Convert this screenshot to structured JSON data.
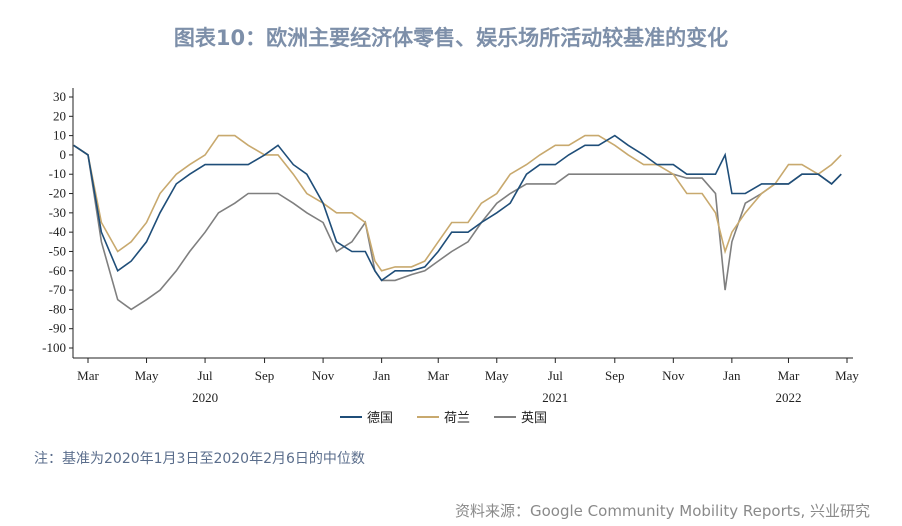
{
  "title": "图表10：欧洲主要经济体零售、娱乐场所活动较基准的变化",
  "note": "注：基准为2020年1月3日至2020年2月6日的中位数",
  "source": "资料来源：Google Community Mobility Reports, 兴业研究",
  "chart_data": {
    "type": "line",
    "ylim": [
      -100,
      30
    ],
    "yticks": [
      "30",
      "20",
      "10",
      "0",
      "-10",
      "-20",
      "-30",
      "-40",
      "-50",
      "-60",
      "-70",
      "-80",
      "-90",
      "-100"
    ],
    "xticks": [
      {
        "label": "Mar",
        "date": "2020-03-01"
      },
      {
        "label": "May",
        "date": "2020-05-01"
      },
      {
        "label": "Jul",
        "date": "2020-07-01"
      },
      {
        "label": "Sep",
        "date": "2020-09-01"
      },
      {
        "label": "Nov",
        "date": "2020-11-01"
      },
      {
        "label": "Jan",
        "date": "2021-01-01"
      },
      {
        "label": "Mar",
        "date": "2021-03-01"
      },
      {
        "label": "May",
        "date": "2021-05-01"
      },
      {
        "label": "Jul",
        "date": "2021-07-01"
      },
      {
        "label": "Sep",
        "date": "2021-09-01"
      },
      {
        "label": "Nov",
        "date": "2021-11-01"
      },
      {
        "label": "Jan",
        "date": "2022-01-01"
      },
      {
        "label": "Mar",
        "date": "2022-03-01"
      },
      {
        "label": "May",
        "date": "2022-05-01"
      }
    ],
    "year_labels": [
      {
        "label": "2020",
        "date": "2020-07-01"
      },
      {
        "label": "2021",
        "date": "2021-07-01"
      },
      {
        "label": "2022",
        "date": "2022-03-01"
      }
    ],
    "x": [
      "2020-02-15",
      "2020-03-01",
      "2020-03-15",
      "2020-04-01",
      "2020-04-15",
      "2020-05-01",
      "2020-05-15",
      "2020-06-01",
      "2020-06-15",
      "2020-07-01",
      "2020-07-15",
      "2020-08-01",
      "2020-08-15",
      "2020-09-01",
      "2020-09-15",
      "2020-10-01",
      "2020-10-15",
      "2020-11-01",
      "2020-11-15",
      "2020-12-01",
      "2020-12-15",
      "2020-12-25",
      "2021-01-01",
      "2021-01-15",
      "2021-02-01",
      "2021-02-15",
      "2021-03-01",
      "2021-03-15",
      "2021-04-01",
      "2021-04-15",
      "2021-05-01",
      "2021-05-15",
      "2021-06-01",
      "2021-06-15",
      "2021-07-01",
      "2021-07-15",
      "2021-08-01",
      "2021-08-15",
      "2021-09-01",
      "2021-09-15",
      "2021-10-01",
      "2021-10-15",
      "2021-11-01",
      "2021-11-15",
      "2021-12-01",
      "2021-12-15",
      "2021-12-25",
      "2022-01-01",
      "2022-01-15",
      "2022-02-01",
      "2022-02-15",
      "2022-03-01",
      "2022-03-15",
      "2022-04-01",
      "2022-04-15",
      "2022-04-25"
    ],
    "series": [
      {
        "name": "德国",
        "color": "#1f4e79",
        "values": [
          5,
          0,
          -40,
          -60,
          -55,
          -45,
          -30,
          -15,
          -10,
          -5,
          -5,
          -5,
          -5,
          0,
          5,
          -5,
          -10,
          -25,
          -45,
          -50,
          -50,
          -60,
          -65,
          -60,
          -60,
          -58,
          -50,
          -40,
          -40,
          -35,
          -30,
          -25,
          -10,
          -5,
          -5,
          0,
          5,
          5,
          10,
          5,
          0,
          -5,
          -5,
          -10,
          -10,
          -10,
          0,
          -20,
          -20,
          -15,
          -15,
          -15,
          -10,
          -10,
          -15,
          -10
        ]
      },
      {
        "name": "荷兰",
        "color": "#c8a96e",
        "values": [
          5,
          0,
          -35,
          -50,
          -45,
          -35,
          -20,
          -10,
          -5,
          0,
          10,
          10,
          5,
          0,
          0,
          -10,
          -20,
          -25,
          -30,
          -30,
          -35,
          -55,
          -60,
          -58,
          -58,
          -55,
          -45,
          -35,
          -35,
          -25,
          -20,
          -10,
          -5,
          0,
          5,
          5,
          10,
          10,
          5,
          0,
          -5,
          -5,
          -10,
          -20,
          -20,
          -30,
          -50,
          -40,
          -30,
          -20,
          -15,
          -5,
          -5,
          -10,
          -5,
          0
        ]
      },
      {
        "name": "英国",
        "color": "#7f7f7f",
        "values": [
          5,
          0,
          -45,
          -75,
          -80,
          -75,
          -70,
          -60,
          -50,
          -40,
          -30,
          -25,
          -20,
          -20,
          -20,
          -25,
          -30,
          -35,
          -50,
          -45,
          -35,
          -60,
          -65,
          -65,
          -62,
          -60,
          -55,
          -50,
          -45,
          -35,
          -25,
          -20,
          -15,
          -15,
          -15,
          -10,
          -10,
          -10,
          -10,
          -10,
          -10,
          -10,
          -10,
          -12,
          -12,
          -20,
          -70,
          -45,
          -25,
          -20,
          -15,
          -15,
          -10,
          -10,
          -15,
          -10
        ]
      }
    ]
  }
}
